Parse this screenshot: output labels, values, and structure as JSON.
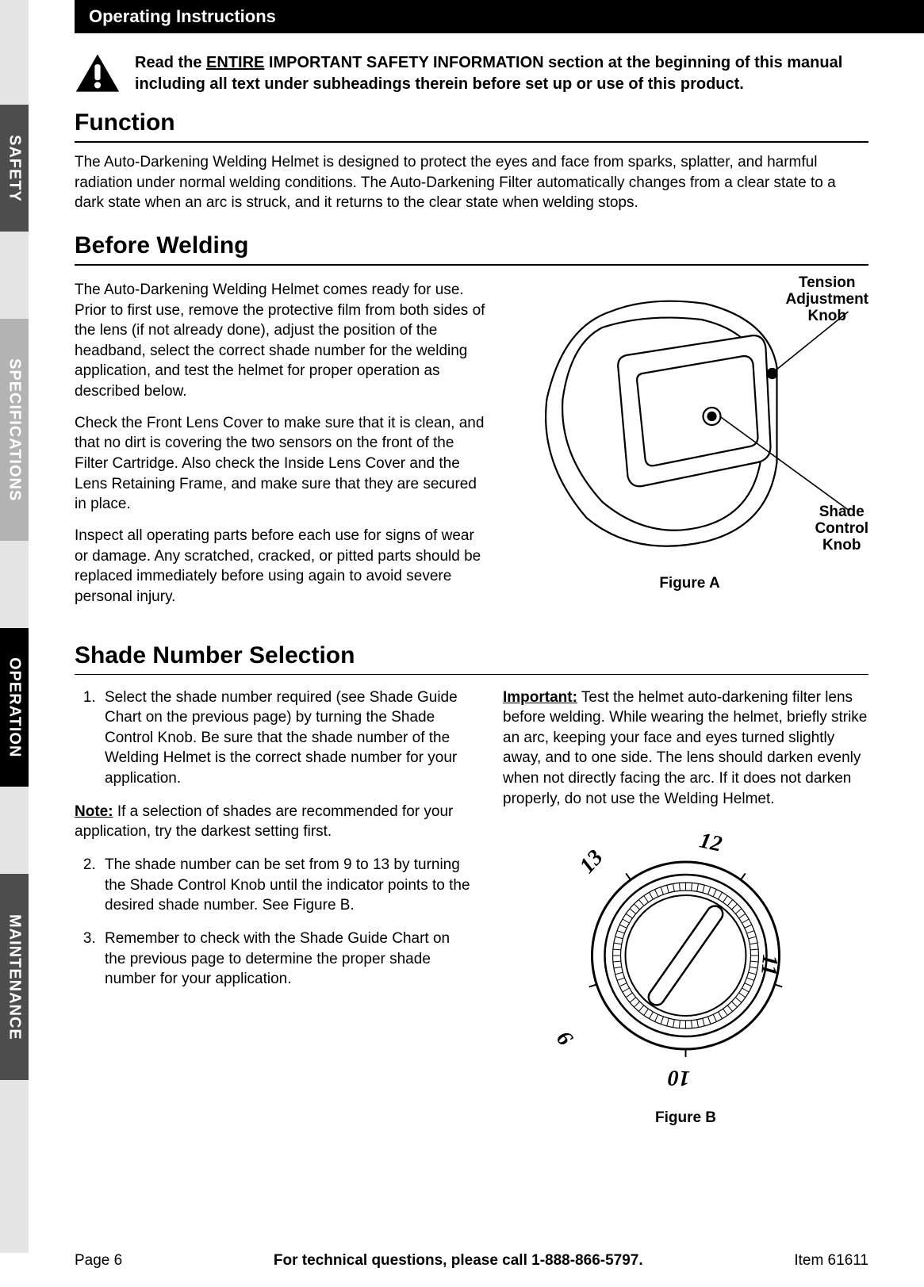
{
  "header": {
    "title": "Operating Instructions"
  },
  "side_tabs": {
    "safety": "SAFETY",
    "specs": "SPECIFICATIONS",
    "operation": "OPERATION",
    "maintenance": "MAINTENANCE",
    "colors": {
      "col_bg": "#e5e5e5",
      "safety_bg": "#4d4d4d",
      "specs_bg": "#b3b3b3",
      "operation_bg": "#000000",
      "maintenance_bg": "#4d4d4d",
      "text": "#ffffff"
    }
  },
  "warning": {
    "pre": "Read the ",
    "entire": "ENTIRE",
    "post": " IMPORTANT SAFETY INFORMATION section at the beginning of this manual including all text under subheadings therein before set up or use of this product."
  },
  "function": {
    "heading": "Function",
    "body": "The Auto-Darkening Welding Helmet is designed to protect the eyes and face from sparks, splatter, and harmful radiation under normal welding conditions. The Auto-Darkening Filter automatically changes from a clear state to a dark state when an arc is struck, and it returns to the clear state when welding stops."
  },
  "before_welding": {
    "heading": "Before Welding",
    "p1": "The Auto-Darkening Welding Helmet comes ready for use.  Prior to first use, remove the protective film from both sides of the lens (if not already done), adjust the position of the headband, select the correct shade number for the welding application, and test the helmet for proper operation as described below.",
    "p2": "Check the Front Lens Cover to make sure that it is clean, and that no dirt is covering the two sensors on the front of the Filter Cartridge.  Also check the Inside Lens Cover and the Lens Retaining Frame, and make sure that they are secured in place.",
    "p3": "Inspect all operating parts before each use for signs of wear or damage.  Any scratched, cracked, or pitted parts should be replaced immediately before using again to avoid severe personal injury.",
    "figA": {
      "caption": "Figure A",
      "label_tension_l1": "Tension",
      "label_tension_l2": "Adjustment",
      "label_tension_l3": "Knob",
      "label_shade_l1": "Shade",
      "label_shade_l2": "Control",
      "label_shade_l3": "Knob",
      "stroke": "#000000",
      "fill": "#ffffff"
    }
  },
  "shade_selection": {
    "heading": "Shade Number Selection",
    "step1": "Select the shade number required (see Shade Guide Chart on the previous page) by turning the Shade Control Knob.  Be sure that the shade number of the Welding Helmet is the correct shade number for your application.",
    "note_label": "Note:",
    "note_body": "  If a selection of shades are recommended for your application, try the darkest setting first.",
    "step2": "The shade number can be set from 9 to 13 by turning the Shade Control Knob until the indicator points to the desired shade number.  See Figure B.",
    "step3": "Remember to check with the Shade Guide Chart on the previous page to determine the proper shade number for your application.",
    "important_label": "Important:",
    "important_body": "  Test the helmet auto-darkening filter lens before welding.  While wearing the helmet, briefly strike an arc, keeping your face and eyes turned slightly away, and to one side.  The lens should darken evenly when not directly facing the arc.  If it does not darken properly, do not use the Welding Helmet.",
    "figB": {
      "caption": "Figure B",
      "numbers": [
        "9",
        "10",
        "11",
        "12",
        "13"
      ],
      "stroke": "#000000",
      "fill": "#ffffff"
    }
  },
  "footer": {
    "page": "Page 6",
    "center": "For technical questions, please call 1-888-866-5797.",
    "item": "Item 61611"
  }
}
